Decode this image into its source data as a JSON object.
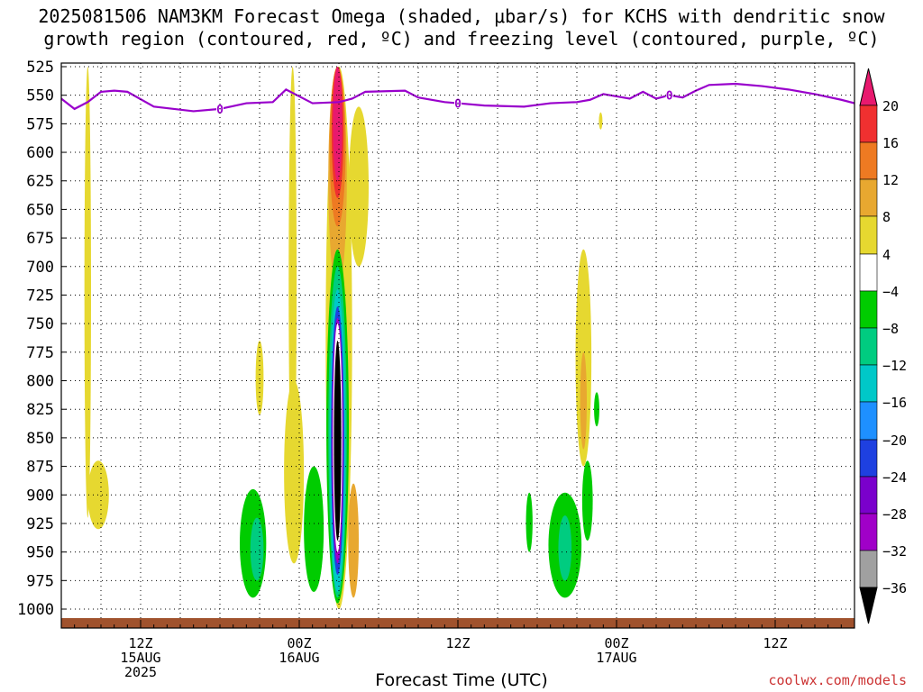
{
  "title_line1": "2025081506 NAM3KM Forecast Omega (shaded, μbar/s) for KCHS with dendritic snow",
  "title_line2": "growth region (contoured, red, ºC) and freezing level (contoured, purple, ºC)",
  "xlabel": "Forecast Time (UTC)",
  "watermark": "coolwx.com/models",
  "chart_data": {
    "type": "heatmap",
    "title": "2025081506 NAM3KM Forecast Omega (shaded, μbar/s) for KCHS with dendritic snow growth region (contoured, red, ºC) and freezing level (contoured, purple, ºC)",
    "xlabel": "Forecast Time (UTC)",
    "ylabel": "",
    "x_range_hours_from_init": [
      0,
      60
    ],
    "y_axis_pressure_hPa": [
      525,
      550,
      575,
      600,
      625,
      650,
      675,
      700,
      725,
      750,
      775,
      800,
      825,
      850,
      875,
      900,
      925,
      950,
      975,
      1000
    ],
    "y_ticks": [
      "525",
      "550",
      "575",
      "600",
      "625",
      "650",
      "675",
      "700",
      "725",
      "750",
      "775",
      "800",
      "825",
      "850",
      "875",
      "900",
      "925",
      "950",
      "975",
      "1000"
    ],
    "x_ticks": [
      {
        "hour": 6,
        "lines": [
          "12Z",
          "15AUG",
          "2025"
        ]
      },
      {
        "hour": 18,
        "lines": [
          "00Z",
          "16AUG"
        ]
      },
      {
        "hour": 30,
        "lines": [
          "12Z"
        ]
      },
      {
        "hour": 42,
        "lines": [
          "00Z",
          "17AUG"
        ]
      },
      {
        "hour": 54,
        "lines": [
          "12Z"
        ]
      }
    ],
    "colorbar": {
      "labels": [
        "20",
        "16",
        "12",
        "8",
        "4",
        "−4",
        "−8",
        "−12",
        "−16",
        "−20",
        "−24",
        "−28",
        "−32",
        "−36"
      ],
      "colors": [
        "#f5a0c8",
        "#e8196e",
        "#f03030",
        "#ee7a22",
        "#e8a830",
        "#e6d830",
        "#ffffff",
        "#00cc00",
        "#00cc80",
        "#00c8c8",
        "#1e90ff",
        "#1e40e0",
        "#7a00cc",
        "#a000c8",
        "#a0a0a0",
        "#000000"
      ]
    },
    "freezing_level_label": "0",
    "freezing_level_hPa": [
      [
        0,
        553
      ],
      [
        1,
        562
      ],
      [
        2,
        556
      ],
      [
        3,
        547
      ],
      [
        4,
        546
      ],
      [
        5,
        547
      ],
      [
        7,
        560
      ],
      [
        10,
        564
      ],
      [
        12,
        562
      ],
      [
        14,
        557
      ],
      [
        16,
        556
      ],
      [
        17,
        545
      ],
      [
        18,
        551
      ],
      [
        19,
        557
      ],
      [
        21,
        556
      ],
      [
        22,
        553
      ],
      [
        23,
        547
      ],
      [
        26,
        546
      ],
      [
        27,
        552
      ],
      [
        29,
        556
      ],
      [
        30,
        557
      ],
      [
        32,
        559
      ],
      [
        35,
        560
      ],
      [
        37,
        557
      ],
      [
        39,
        556
      ],
      [
        40,
        554
      ],
      [
        41,
        549
      ],
      [
        42,
        551
      ],
      [
        43,
        553
      ],
      [
        44,
        547
      ],
      [
        45,
        553
      ],
      [
        46,
        550
      ],
      [
        47,
        552
      ],
      [
        48,
        546
      ],
      [
        49,
        541
      ],
      [
        51,
        540
      ],
      [
        53,
        542
      ],
      [
        55,
        545
      ],
      [
        57,
        549
      ],
      [
        59,
        554
      ],
      [
        60,
        557
      ]
    ],
    "omega_regions": [
      {
        "level": "4",
        "hour": 2.0,
        "p_top": 525,
        "p_bot": 920,
        "width_h": 0.5
      },
      {
        "level": "4",
        "hour": 2.8,
        "p_top": 870,
        "p_bot": 930,
        "width_h": 1.6
      },
      {
        "level": "4",
        "hour": 15.0,
        "p_top": 765,
        "p_bot": 830,
        "width_h": 0.6
      },
      {
        "level": "4",
        "hour": 17.5,
        "p_top": 525,
        "p_bot": 900,
        "width_h": 0.6
      },
      {
        "level": "4",
        "hour": 17.6,
        "p_top": 800,
        "p_bot": 960,
        "width_h": 1.5
      },
      {
        "level": "4",
        "hour": 21.0,
        "p_top": 525,
        "p_bot": 1000,
        "width_h": 2.0
      },
      {
        "level": "4",
        "hour": 22.5,
        "p_top": 560,
        "p_bot": 700,
        "width_h": 1.5
      },
      {
        "level": "8",
        "hour": 20.9,
        "p_top": 525,
        "p_bot": 720,
        "width_h": 1.4
      },
      {
        "level": "8",
        "hour": 22.1,
        "p_top": 890,
        "p_bot": 990,
        "width_h": 0.8
      },
      {
        "level": "12",
        "hour": 20.9,
        "p_top": 525,
        "p_bot": 665,
        "width_h": 1.2
      },
      {
        "level": "16",
        "hour": 20.9,
        "p_top": 525,
        "p_bot": 640,
        "width_h": 0.9
      },
      {
        "level": "20",
        "hour": 20.9,
        "p_top": 525,
        "p_bot": 625,
        "width_h": 0.7
      },
      {
        "level": "4",
        "hour": 39.5,
        "p_top": 685,
        "p_bot": 875,
        "width_h": 1.2
      },
      {
        "level": "8",
        "hour": 39.5,
        "p_top": 775,
        "p_bot": 860,
        "width_h": 0.5
      },
      {
        "level": "4",
        "hour": 40.8,
        "p_top": 565,
        "p_bot": 580,
        "width_h": 0.2
      },
      {
        "level": "-4",
        "hour": 14.5,
        "p_top": 895,
        "p_bot": 990,
        "width_h": 2.0
      },
      {
        "level": "-4",
        "hour": 19.1,
        "p_top": 875,
        "p_bot": 985,
        "width_h": 1.5
      },
      {
        "level": "-4",
        "hour": 35.4,
        "p_top": 898,
        "p_bot": 950,
        "width_h": 0.5
      },
      {
        "level": "-4",
        "hour": 38.1,
        "p_top": 898,
        "p_bot": 990,
        "width_h": 2.5
      },
      {
        "level": "-4",
        "hour": 39.8,
        "p_top": 870,
        "p_bot": 940,
        "width_h": 0.8
      },
      {
        "level": "-4",
        "hour": 40.5,
        "p_top": 810,
        "p_bot": 840,
        "width_h": 0.4
      },
      {
        "level": "-8",
        "hour": 14.8,
        "p_top": 920,
        "p_bot": 975,
        "width_h": 1.0
      },
      {
        "level": "-8",
        "hour": 38.1,
        "p_top": 918,
        "p_bot": 975,
        "width_h": 1.0
      },
      {
        "level": "-4",
        "hour": 20.9,
        "p_top": 685,
        "p_bot": 995,
        "width_h": 1.7
      },
      {
        "level": "-8",
        "hour": 20.9,
        "p_top": 700,
        "p_bot": 990,
        "width_h": 1.4
      },
      {
        "level": "-12",
        "hour": 20.9,
        "p_top": 720,
        "p_bot": 985,
        "width_h": 1.2
      },
      {
        "level": "-20",
        "hour": 20.9,
        "p_top": 735,
        "p_bot": 970,
        "width_h": 1.0
      },
      {
        "level": "-28",
        "hour": 20.9,
        "p_top": 745,
        "p_bot": 960,
        "width_h": 0.85
      },
      {
        "level": "-32",
        "hour": 20.9,
        "p_top": 750,
        "p_bot": 950,
        "width_h": 0.7
      },
      {
        "level": "-36",
        "hour": 20.9,
        "p_top": 765,
        "p_bot": 940,
        "width_h": 0.55
      }
    ],
    "level_colors": {
      "4": "#e6d830",
      "8": "#e8a830",
      "12": "#ee7a22",
      "16": "#f03030",
      "20": "#e8196e",
      "-4": "#00cc00",
      "-8": "#00cc80",
      "-12": "#00c8c8",
      "-20": "#1e40e0",
      "-28": "#a000c8",
      "-32": "#ffffff",
      "-36": "#000000"
    },
    "terrain_color": "#a0522d",
    "freezing_line_color": "#9900cc",
    "grid": true
  }
}
